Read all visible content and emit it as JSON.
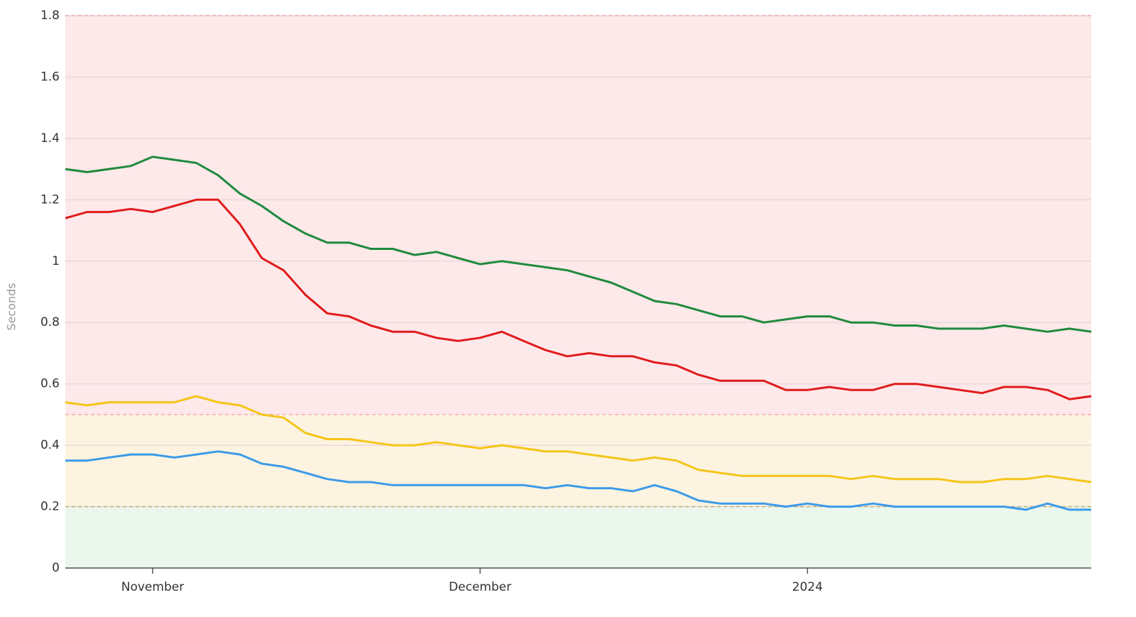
{
  "chart_data": {
    "type": "line",
    "y_label": "Seconds",
    "categories": [
      null,
      null,
      null,
      null,
      "November",
      null,
      null,
      null,
      null,
      null,
      null,
      null,
      null,
      null,
      null,
      null,
      null,
      null,
      null,
      "December",
      null,
      null,
      null,
      null,
      null,
      null,
      null,
      null,
      null,
      null,
      null,
      null,
      null,
      null,
      "2024",
      null,
      null,
      null,
      null,
      null,
      null,
      null,
      null,
      null,
      null,
      null,
      null,
      null
    ],
    "series": [
      {
        "color": "#1e8a3c",
        "values": [
          1.3,
          1.29,
          1.3,
          1.31,
          1.34,
          1.33,
          1.32,
          1.28,
          1.22,
          1.18,
          1.13,
          1.09,
          1.06,
          1.06,
          1.04,
          1.04,
          1.02,
          1.03,
          1.01,
          0.99,
          1.0,
          0.99,
          0.98,
          0.97,
          0.95,
          0.93,
          0.9,
          0.87,
          0.86,
          0.84,
          0.82,
          0.82,
          0.8,
          0.81,
          0.82,
          0.82,
          0.8,
          0.8,
          0.79,
          0.79,
          0.78,
          0.78,
          0.78,
          0.79,
          0.78,
          0.77,
          0.78,
          0.77
        ]
      },
      {
        "color": "#e01b1b",
        "values": [
          1.14,
          1.16,
          1.16,
          1.17,
          1.16,
          1.18,
          1.2,
          1.2,
          1.12,
          1.01,
          0.97,
          0.89,
          0.83,
          0.82,
          0.79,
          0.77,
          0.77,
          0.75,
          0.74,
          0.75,
          0.77,
          0.74,
          0.71,
          0.69,
          0.7,
          0.69,
          0.69,
          0.67,
          0.66,
          0.63,
          0.61,
          0.61,
          0.61,
          0.58,
          0.58,
          0.59,
          0.58,
          0.58,
          0.6,
          0.6,
          0.59,
          0.58,
          0.57,
          0.59,
          0.59,
          0.58,
          0.55,
          0.56
        ]
      },
      {
        "color": "#f5c518",
        "values": [
          0.54,
          0.53,
          0.54,
          0.54,
          0.54,
          0.54,
          0.56,
          0.54,
          0.53,
          0.5,
          0.49,
          0.44,
          0.42,
          0.42,
          0.41,
          0.4,
          0.4,
          0.41,
          0.4,
          0.39,
          0.4,
          0.39,
          0.38,
          0.38,
          0.37,
          0.36,
          0.35,
          0.36,
          0.35,
          0.32,
          0.31,
          0.3,
          0.3,
          0.3,
          0.3,
          0.3,
          0.29,
          0.3,
          0.29,
          0.29,
          0.29,
          0.28,
          0.28,
          0.29,
          0.29,
          0.3,
          0.29,
          0.28
        ]
      },
      {
        "color": "#3b9be8",
        "values": [
          0.35,
          0.35,
          0.36,
          0.37,
          0.37,
          0.36,
          0.37,
          0.38,
          0.37,
          0.34,
          0.33,
          0.31,
          0.29,
          0.28,
          0.28,
          0.27,
          0.27,
          0.27,
          0.27,
          0.27,
          0.27,
          0.27,
          0.26,
          0.27,
          0.26,
          0.26,
          0.25,
          0.27,
          0.25,
          0.22,
          0.21,
          0.21,
          0.21,
          0.2,
          0.21,
          0.2,
          0.2,
          0.21,
          0.2,
          0.2,
          0.2,
          0.2,
          0.2,
          0.2,
          0.19,
          0.21,
          0.19,
          0.19
        ]
      }
    ],
    "bands": [
      {
        "from": 0,
        "to": 0.2,
        "color": "#ebf7ed",
        "line_color": "#b8b070"
      },
      {
        "from": 0.2,
        "to": 0.5,
        "color": "#fdf3e1",
        "line_color": "#f0a0a0"
      },
      {
        "from": 0.5,
        "to": 1.8,
        "color": "#fde8ea",
        "line_color": "#f0a0a0"
      }
    ],
    "ylim": [
      0,
      1.8
    ],
    "yticks": [
      0,
      0.2,
      0.4,
      0.6,
      0.8,
      1,
      1.2,
      1.4,
      1.6,
      1.8
    ],
    "grid": true
  }
}
